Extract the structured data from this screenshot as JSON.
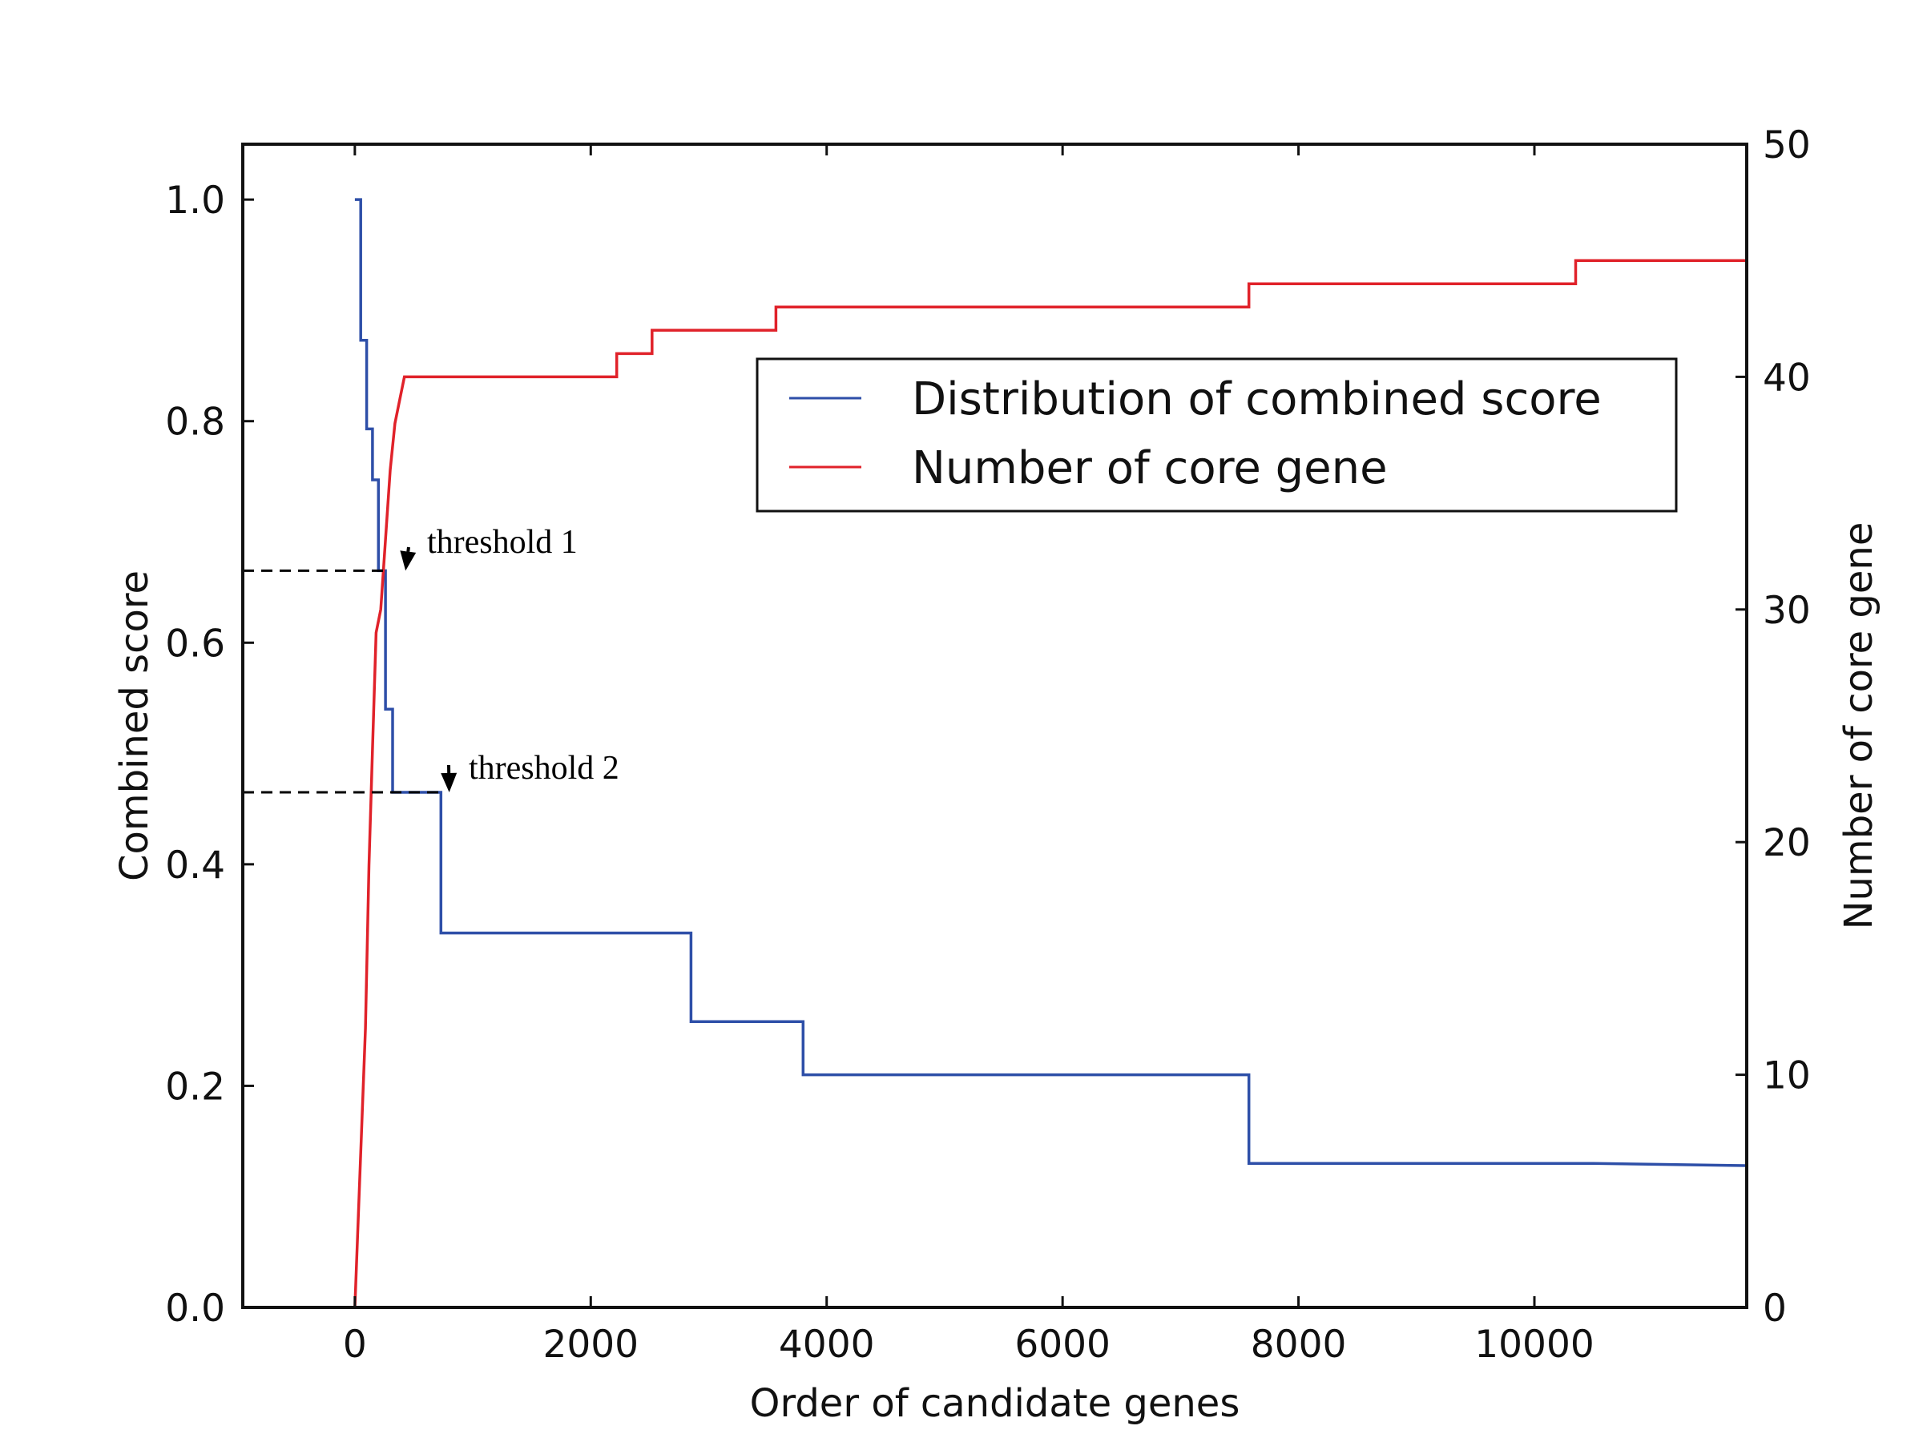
{
  "chart_data": {
    "type": "line",
    "xlabel": "Order of candidate genes",
    "ylabel_left": "Combined score",
    "ylabel_right": "Number of core gene",
    "xlim": [
      -950,
      11800
    ],
    "ylim_left": [
      0.0,
      1.05
    ],
    "ylim_right": [
      0,
      50
    ],
    "x_ticks": [
      0,
      2000,
      4000,
      6000,
      8000,
      10000
    ],
    "y_left_ticks": [
      "0.0",
      "0.2",
      "0.4",
      "0.6",
      "0.8",
      "1.0"
    ],
    "y_right_ticks": [
      "0",
      "10",
      "20",
      "30",
      "40",
      "50"
    ],
    "grid": false,
    "legend_position": "upper-right",
    "series": [
      {
        "name": "Distribution of combined score",
        "axis": "left",
        "color": "#2e4fa8",
        "points": [
          [
            0,
            1.0
          ],
          [
            50,
            1.0
          ],
          [
            50,
            0.873
          ],
          [
            100,
            0.873
          ],
          [
            100,
            0.793
          ],
          [
            150,
            0.793
          ],
          [
            150,
            0.747
          ],
          [
            200,
            0.747
          ],
          [
            200,
            0.665
          ],
          [
            260,
            0.665
          ],
          [
            260,
            0.54
          ],
          [
            320,
            0.54
          ],
          [
            320,
            0.465
          ],
          [
            730,
            0.465
          ],
          [
            730,
            0.338
          ],
          [
            2850,
            0.338
          ],
          [
            2850,
            0.258
          ],
          [
            3800,
            0.258
          ],
          [
            3800,
            0.21
          ],
          [
            7580,
            0.21
          ],
          [
            7580,
            0.13
          ],
          [
            10500,
            0.13
          ],
          [
            11800,
            0.128
          ]
        ]
      },
      {
        "name": "Number of core gene",
        "axis": "right",
        "color": "#e0222a",
        "points": [
          [
            0,
            0
          ],
          [
            30,
            4
          ],
          [
            60,
            8
          ],
          [
            90,
            12
          ],
          [
            120,
            19
          ],
          [
            150,
            24
          ],
          [
            180,
            29
          ],
          [
            220,
            30
          ],
          [
            260,
            33
          ],
          [
            300,
            36
          ],
          [
            340,
            38
          ],
          [
            380,
            39
          ],
          [
            420,
            40
          ],
          [
            2220,
            40
          ],
          [
            2220,
            41
          ],
          [
            2520,
            41
          ],
          [
            2520,
            42
          ],
          [
            3570,
            42
          ],
          [
            3570,
            43
          ],
          [
            7580,
            43
          ],
          [
            7580,
            44
          ],
          [
            10350,
            44
          ],
          [
            10350,
            45
          ],
          [
            12650,
            45
          ],
          [
            12650,
            46
          ],
          [
            13300,
            46
          ]
        ]
      }
    ],
    "annotations": [
      {
        "text": "threshold 1",
        "y_left": 0.665,
        "x_end": 260,
        "arrow_x": 430,
        "arrow_y_left": 0.665
      },
      {
        "text": "threshold 2",
        "y_left": 0.465,
        "x_end": 730,
        "arrow_x": 800,
        "arrow_y_left": 0.465
      }
    ]
  }
}
